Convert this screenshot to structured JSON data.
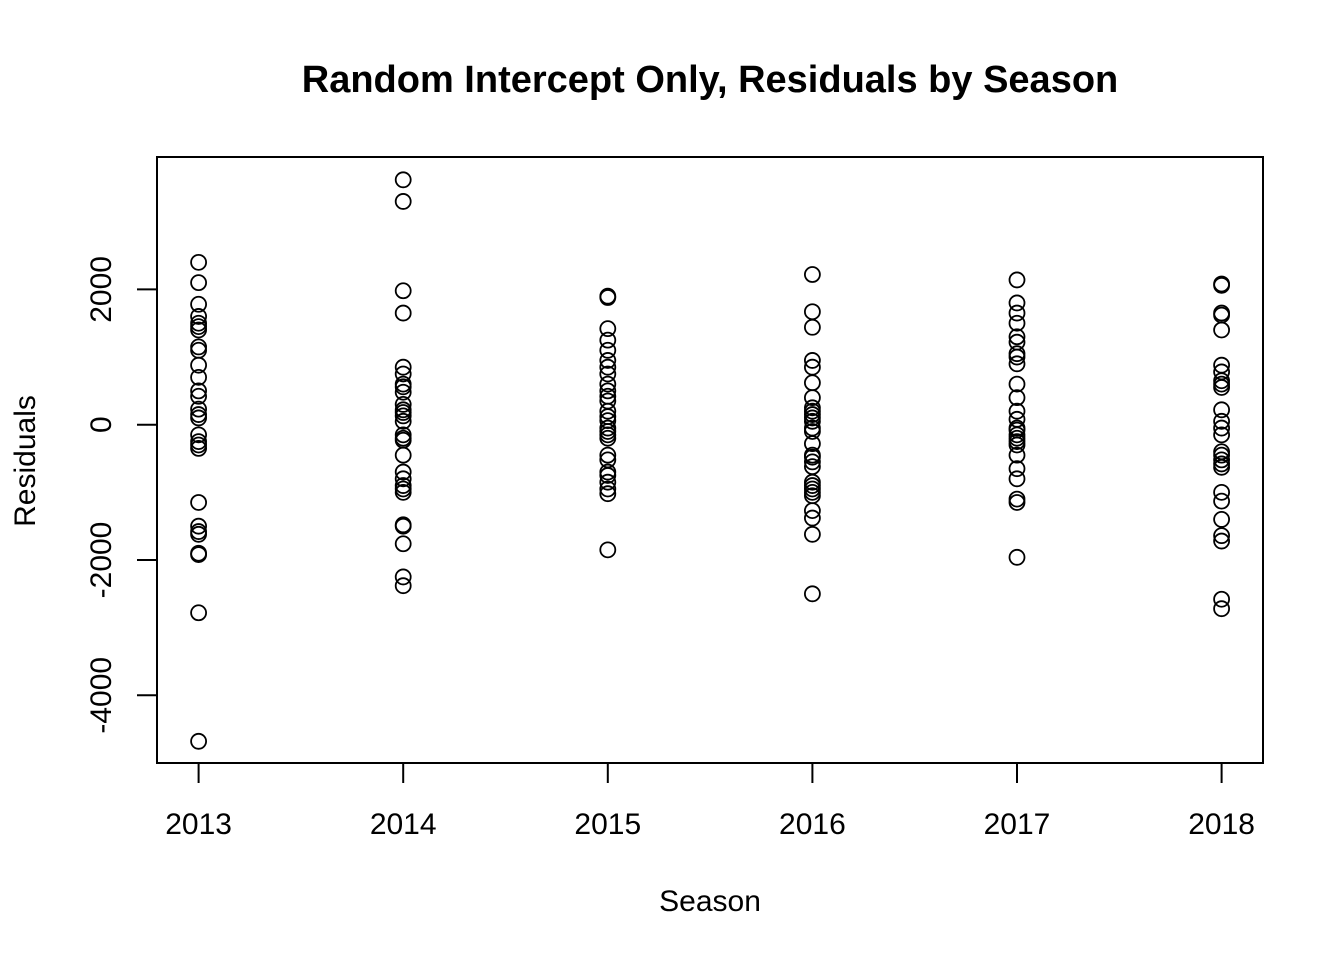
{
  "chart_data": {
    "type": "scatter",
    "title": "Random Intercept Only, Residuals by Season",
    "xlabel": "Season",
    "ylabel": "Residuals",
    "xlim": [
      2012.8,
      2018.2
    ],
    "ylim": [
      -5000,
      4000
    ],
    "x_ticks": [
      2013,
      2014,
      2015,
      2016,
      2017,
      2018
    ],
    "y_ticks": [
      -4000,
      -2000,
      0,
      2000
    ],
    "grid": false,
    "legend": "none",
    "marker": "open-circle",
    "color": "#000000",
    "points": [
      {
        "x": 2013,
        "y": [
          2400,
          2100,
          1780,
          1600,
          1500,
          1450,
          1400,
          1150,
          1100,
          880,
          700,
          500,
          420,
          230,
          150,
          100,
          -150,
          -250,
          -300,
          -350,
          -1150,
          -1500,
          -1580,
          -1620,
          -1900,
          -1920,
          -2780,
          -4680
        ]
      },
      {
        "x": 2014,
        "y": [
          3620,
          3300,
          1980,
          1650,
          850,
          750,
          600,
          560,
          480,
          300,
          220,
          180,
          130,
          50,
          -150,
          -200,
          -230,
          -450,
          -700,
          -800,
          -900,
          -950,
          -1000,
          -1480,
          -1500,
          -1760,
          -2250,
          -2380
        ]
      },
      {
        "x": 2015,
        "y": [
          1900,
          1880,
          1420,
          1250,
          1100,
          950,
          850,
          750,
          600,
          500,
          420,
          350,
          200,
          120,
          60,
          -50,
          -100,
          -150,
          -200,
          -450,
          -520,
          -700,
          -750,
          -850,
          -950,
          -1020,
          -1850
        ]
      },
      {
        "x": 2016,
        "y": [
          2220,
          1670,
          1440,
          950,
          850,
          620,
          400,
          250,
          200,
          150,
          100,
          50,
          -50,
          -100,
          -280,
          -450,
          -480,
          -550,
          -620,
          -850,
          -900,
          -950,
          -1000,
          -1050,
          -1270,
          -1380,
          -1620,
          -2500
        ]
      },
      {
        "x": 2017,
        "y": [
          2140,
          1800,
          1650,
          1500,
          1300,
          1220,
          1050,
          1000,
          900,
          600,
          400,
          200,
          80,
          -50,
          -80,
          -150,
          -200,
          -250,
          -300,
          -450,
          -650,
          -800,
          -1100,
          -1150,
          -1960
        ]
      },
      {
        "x": 2018,
        "y": [
          2080,
          2060,
          1650,
          1620,
          1400,
          880,
          780,
          650,
          600,
          550,
          220,
          50,
          -50,
          -150,
          -400,
          -450,
          -520,
          -580,
          -630,
          -1000,
          -1130,
          -1400,
          -1640,
          -1720,
          -2580,
          -2720
        ]
      }
    ]
  }
}
